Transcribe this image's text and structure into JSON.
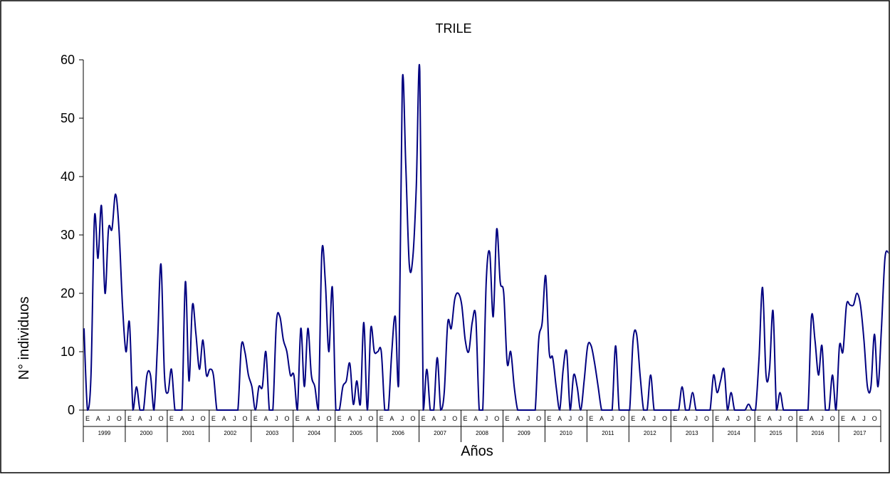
{
  "chart_data": {
    "type": "line",
    "title": "TRILE",
    "xlabel": "Años",
    "ylabel": "N° individuos",
    "ylim": [
      0,
      60
    ],
    "yticks": [
      "0",
      "10",
      "20",
      "30",
      "40",
      "50",
      "60"
    ],
    "month_labels": [
      "E",
      "A",
      "J",
      "O"
    ],
    "years": [
      "1999",
      "2000",
      "2001",
      "2002",
      "2003",
      "2004",
      "2005",
      "2006",
      "2007",
      "2008",
      "2009",
      "2010",
      "2011",
      "2012",
      "2013",
      "2014",
      "2015",
      "2016",
      "2017"
    ],
    "grid": false,
    "legend": "none",
    "line_color": "#000080",
    "series": [
      {
        "values": [
          14,
          0,
          6,
          33,
          26,
          35,
          20,
          31,
          31,
          37,
          31,
          18,
          10,
          15,
          0,
          4,
          0,
          0,
          6,
          6,
          0,
          11,
          25,
          6,
          3,
          7,
          0,
          0,
          0,
          22,
          5,
          18,
          13,
          7,
          12,
          6,
          7,
          6,
          0,
          0,
          0,
          0,
          0,
          0,
          0,
          11,
          10,
          6,
          4,
          0,
          4,
          4,
          10,
          0,
          0,
          15,
          16,
          12,
          10,
          6,
          6,
          0,
          14,
          4,
          14,
          6,
          4,
          0,
          27,
          22,
          10,
          21,
          0,
          0,
          4,
          5,
          8,
          1,
          5,
          1,
          15,
          0,
          14,
          10,
          10,
          10,
          0,
          0,
          10,
          16,
          5,
          56,
          42,
          25,
          26,
          38,
          58,
          0,
          7,
          0,
          0,
          9,
          0,
          3,
          15,
          14,
          19,
          20,
          18,
          12,
          10,
          15,
          16,
          0,
          0,
          22,
          27,
          16,
          31,
          22,
          20,
          8,
          10,
          4,
          0,
          0,
          0,
          0,
          0,
          0,
          12,
          15,
          23,
          10,
          9,
          4,
          0,
          7,
          10,
          0,
          6,
          4,
          0,
          5,
          11,
          11,
          8,
          4,
          0,
          0,
          0,
          0,
          11,
          0,
          0,
          0,
          0,
          12,
          13,
          6,
          0,
          0,
          6,
          0,
          0,
          0,
          0,
          0,
          0,
          0,
          0,
          4,
          0,
          0,
          3,
          0,
          0,
          0,
          0,
          0,
          6,
          3,
          5,
          7,
          0,
          3,
          0,
          0,
          0,
          0,
          1,
          0,
          0,
          9,
          21,
          6,
          7,
          17,
          0,
          3,
          0,
          0,
          0,
          0,
          0,
          0,
          0,
          0,
          16,
          12,
          6,
          11,
          0,
          0,
          6,
          0,
          11,
          10,
          18,
          18,
          18,
          20,
          18,
          12,
          4,
          4,
          13,
          4,
          14,
          26,
          27
        ]
      }
    ]
  }
}
